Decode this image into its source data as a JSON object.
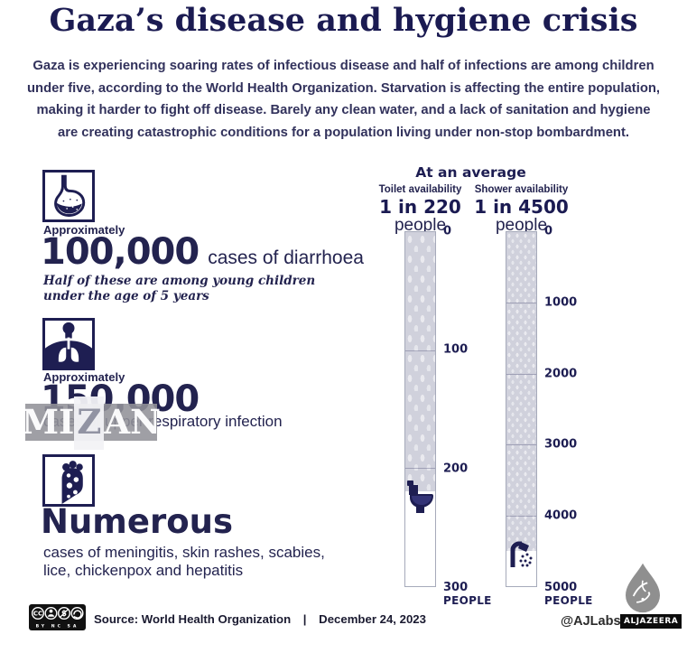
{
  "header": {
    "title": "Gaza’s disease and hygiene crisis",
    "intro": "Gaza is experiencing soaring rates of infectious disease and half of infections are among children under five, according to the World Health Organization. Starvation is affecting the entire population, making it harder to fight off disease. Barely any clean water, and a lack of sanitation and hygiene are creating catastrophic conditions for a population living under non-stop bombardment."
  },
  "stats": [
    {
      "icon": "stomach-icon",
      "qualifier": "Approximately",
      "value": "100,000",
      "label": "cases of diarrhoea",
      "note": "Half of these are among young children under the age of 5 years"
    },
    {
      "icon": "lungs-icon",
      "qualifier": "Approximately",
      "value": "150,000",
      "label": "cases of upper respiratory infection"
    },
    {
      "icon": "rash-arm-icon",
      "value": "Numerous",
      "label": "cases of meningitis, skin rashes, scabies, lice, chickenpox and hepatitis"
    }
  ],
  "watermark": {
    "text": "MIZAN"
  },
  "chart": {
    "title": "At an average"
  },
  "chart_data": [
    {
      "type": "bar",
      "title": "Toilet availability",
      "ratio_label": "1 in 220",
      "unit_label": "people",
      "values": [
        220
      ],
      "ylim": [
        0,
        300
      ],
      "yticks": [
        0,
        100,
        200,
        300
      ],
      "ylabel": "PEOPLE",
      "icon": "toilet-icon",
      "fill_color": "#d0d1dc"
    },
    {
      "type": "bar",
      "title": "Shower availability",
      "ratio_label": "1 in 4500",
      "unit_label": "people",
      "values": [
        4500
      ],
      "ylim": [
        0,
        5000
      ],
      "yticks": [
        0,
        1000,
        2000,
        3000,
        4000,
        5000
      ],
      "ylabel": "PEOPLE",
      "icon": "shower-icon",
      "fill_color": "#d0d1dc"
    }
  ],
  "footer": {
    "license_labels": "BY  NC  SA",
    "license_cc": "CC",
    "source_prefix": "Source:",
    "source": "World Health Organization",
    "divider": "|",
    "date": "December 24, 2023",
    "credit": "@AJLabs",
    "brand": "ALJAZEERA"
  },
  "colors": {
    "navy": "#1d1d52",
    "body_text": "#32325c",
    "bar_fill": "#d0d1dc",
    "bar_border": "#a6aaba",
    "watermark_bg": "#929299",
    "brand_black": "#0c0c0c",
    "logo_gray": "#8f8f8f"
  }
}
